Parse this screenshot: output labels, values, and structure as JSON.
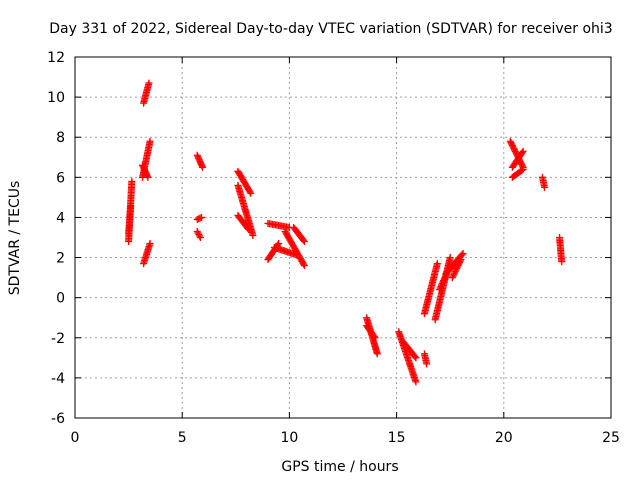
{
  "chart_data": {
    "type": "scatter",
    "title": "Day 331 of 2022, Sidereal Day-to-day VTEC variation (SDTVAR) for receiver ohi3",
    "xlabel": "GPS time / hours",
    "ylabel": "SDTVAR / TECUs",
    "xlim": [
      0,
      25
    ],
    "ylim": [
      -6,
      12
    ],
    "xticks": [
      0,
      5,
      10,
      15,
      20,
      25
    ],
    "yticks": [
      -6,
      -4,
      -2,
      0,
      2,
      4,
      6,
      8,
      10,
      12
    ],
    "grid": true,
    "marker": "+",
    "marker_color": "#ff0000",
    "segments": [
      {
        "x0": 2.5,
        "y0": 2.8,
        "x1": 2.65,
        "y1": 5.8
      },
      {
        "x0": 2.5,
        "y0": 3.2,
        "x1": 2.6,
        "y1": 4.6
      },
      {
        "x0": 3.2,
        "y0": 9.7,
        "x1": 3.45,
        "y1": 10.7
      },
      {
        "x0": 3.15,
        "y0": 6.0,
        "x1": 3.5,
        "y1": 7.8
      },
      {
        "x0": 3.15,
        "y0": 6.6,
        "x1": 3.4,
        "y1": 6.0
      },
      {
        "x0": 3.2,
        "y0": 1.7,
        "x1": 3.5,
        "y1": 2.7
      },
      {
        "x0": 5.7,
        "y0": 7.1,
        "x1": 5.95,
        "y1": 6.5
      },
      {
        "x0": 5.7,
        "y0": 3.9,
        "x1": 5.9,
        "y1": 4.0
      },
      {
        "x0": 5.7,
        "y0": 3.3,
        "x1": 5.85,
        "y1": 3.0
      },
      {
        "x0": 7.6,
        "y0": 6.3,
        "x1": 8.2,
        "y1": 5.2
      },
      {
        "x0": 7.6,
        "y0": 5.6,
        "x1": 8.3,
        "y1": 3.1
      },
      {
        "x0": 7.6,
        "y0": 4.1,
        "x1": 8.1,
        "y1": 3.4
      },
      {
        "x0": 9.0,
        "y0": 3.7,
        "x1": 10.0,
        "y1": 3.5
      },
      {
        "x0": 9.8,
        "y0": 3.3,
        "x1": 10.7,
        "y1": 1.6
      },
      {
        "x0": 9.0,
        "y0": 1.9,
        "x1": 9.5,
        "y1": 2.7
      },
      {
        "x0": 9.3,
        "y0": 2.5,
        "x1": 10.4,
        "y1": 2.1
      },
      {
        "x0": 10.2,
        "y0": 3.5,
        "x1": 10.7,
        "y1": 2.8
      },
      {
        "x0": 13.6,
        "y0": -1.0,
        "x1": 14.1,
        "y1": -2.8
      },
      {
        "x0": 13.6,
        "y0": -1.4,
        "x1": 14.0,
        "y1": -2.0
      },
      {
        "x0": 15.1,
        "y0": -1.7,
        "x1": 15.9,
        "y1": -4.2
      },
      {
        "x0": 15.3,
        "y0": -2.2,
        "x1": 15.9,
        "y1": -3.0
      },
      {
        "x0": 16.3,
        "y0": -2.8,
        "x1": 16.4,
        "y1": -3.3
      },
      {
        "x0": 16.3,
        "y0": -0.8,
        "x1": 16.9,
        "y1": 1.7
      },
      {
        "x0": 16.8,
        "y0": -1.1,
        "x1": 17.5,
        "y1": 2.0
      },
      {
        "x0": 17.0,
        "y0": 0.4,
        "x1": 17.5,
        "y1": 1.6
      },
      {
        "x0": 17.3,
        "y0": 1.2,
        "x1": 18.1,
        "y1": 2.2
      },
      {
        "x0": 17.6,
        "y0": 1.0,
        "x1": 18.0,
        "y1": 1.9
      },
      {
        "x0": 20.3,
        "y0": 7.8,
        "x1": 20.9,
        "y1": 6.5
      },
      {
        "x0": 20.4,
        "y0": 6.5,
        "x1": 20.9,
        "y1": 7.3
      },
      {
        "x0": 20.4,
        "y0": 6.0,
        "x1": 20.9,
        "y1": 6.4
      },
      {
        "x0": 21.8,
        "y0": 6.0,
        "x1": 21.9,
        "y1": 5.5
      },
      {
        "x0": 22.6,
        "y0": 3.0,
        "x1": 22.7,
        "y1": 1.8
      }
    ]
  }
}
